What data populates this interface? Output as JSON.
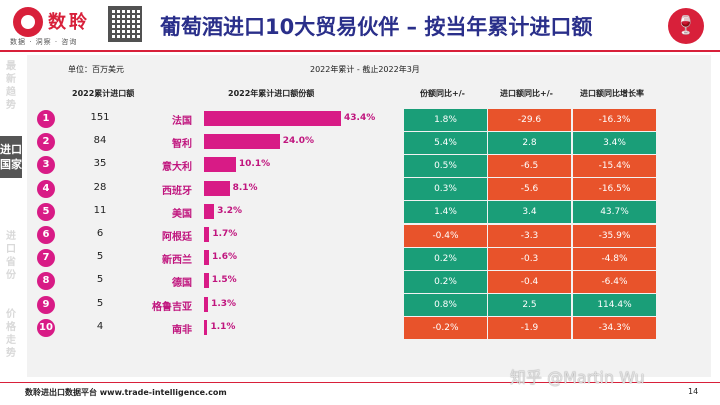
{
  "brand": {
    "name": "数聆",
    "slogan": "数据 · 洞察 · 咨询",
    "accent_color": "#d8203a",
    "logo_icon": "data-logo-icon",
    "qr_icon": "qr-code-icon",
    "header_icon": "wine-glass-icon"
  },
  "title": "葡萄酒进口10大贸易伙伴 – 按当年累计进口额",
  "side_nav": {
    "items": [
      {
        "label": "最新趋势",
        "active": false
      },
      {
        "label": "进口国家",
        "active": true
      },
      {
        "label": "进口省份",
        "active": false
      },
      {
        "label": "价格走势",
        "active": false
      }
    ]
  },
  "table": {
    "unit_label": "单位：百万美元",
    "period_label": "2022年累计 - 截止2022年3月",
    "headers": {
      "value": "2022累计进口额",
      "share": "2022年累计进口额份额",
      "share_yoy": "份额同比+/-",
      "value_yoy": "进口额同比+/-",
      "growth_rate": "进口额同比增长率"
    },
    "colors": {
      "positive": "#1a9e78",
      "negative": "#e8532b",
      "bar": "#d81b86"
    }
  },
  "chart_data": {
    "type": "table",
    "rows": [
      {
        "rank": "1",
        "value": 151,
        "country": "法国",
        "share": "43.4%",
        "share_yoy": "1.8%",
        "value_yoy": "-29.6",
        "growth": "-16.3%"
      },
      {
        "rank": "2",
        "value": 84,
        "country": "智利",
        "share": "24.0%",
        "share_yoy": "5.4%",
        "value_yoy": "2.8",
        "growth": "3.4%"
      },
      {
        "rank": "3",
        "value": 35,
        "country": "意大利",
        "share": "10.1%",
        "share_yoy": "0.5%",
        "value_yoy": "-6.5",
        "growth": "-15.4%"
      },
      {
        "rank": "4",
        "value": 28,
        "country": "西班牙",
        "share": "8.1%",
        "share_yoy": "0.3%",
        "value_yoy": "-5.6",
        "growth": "-16.5%"
      },
      {
        "rank": "5",
        "value": 11,
        "country": "美国",
        "share": "3.2%",
        "share_yoy": "1.4%",
        "value_yoy": "3.4",
        "growth": "43.7%"
      },
      {
        "rank": "6",
        "value": 6,
        "country": "阿根廷",
        "share": "1.7%",
        "share_yoy": "-0.4%",
        "value_yoy": "-3.3",
        "growth": "-35.9%"
      },
      {
        "rank": "7",
        "value": 5,
        "country": "新西兰",
        "share": "1.6%",
        "share_yoy": "0.2%",
        "value_yoy": "-0.3",
        "growth": "-4.8%"
      },
      {
        "rank": "8",
        "value": 5,
        "country": "德国",
        "share": "1.5%",
        "share_yoy": "0.2%",
        "value_yoy": "-0.4",
        "growth": "-6.4%"
      },
      {
        "rank": "9",
        "value": 5,
        "country": "格鲁吉亚",
        "share": "1.3%",
        "share_yoy": "0.8%",
        "value_yoy": "2.5",
        "growth": "114.4%"
      },
      {
        "rank": "10",
        "value": 4,
        "country": "南非",
        "share": "1.1%",
        "share_yoy": "-0.2%",
        "value_yoy": "-1.9",
        "growth": "-34.3%"
      }
    ]
  },
  "footer": {
    "text": "数聆进出口数据平台 www.trade-intelligence.com",
    "page_number": "14",
    "watermark": "知乎 @Martin Wu"
  }
}
